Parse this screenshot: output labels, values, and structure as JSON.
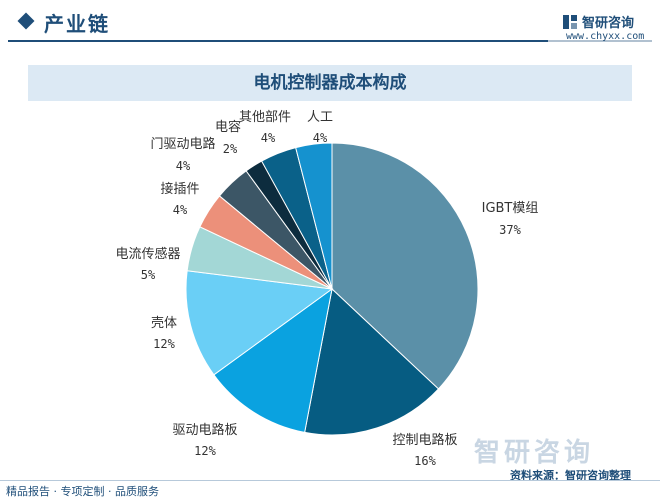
{
  "header": {
    "section_title": "产业链",
    "brand_name": "智研咨询",
    "brand_url": "www.chyxx.com"
  },
  "colors": {
    "accent": "#1f4e79",
    "title_bg": "#dce9f4"
  },
  "chart_data": {
    "type": "pie",
    "title": "电机控制器成本构成",
    "slices": [
      {
        "label": "IGBT模组",
        "value": 37,
        "value_label": "37%",
        "color": "#5b90a8"
      },
      {
        "label": "控制电路板",
        "value": 16,
        "value_label": "16%",
        "color": "#065c82"
      },
      {
        "label": "驱动电路板",
        "value": 12,
        "value_label": "12%",
        "color": "#0aa2e0"
      },
      {
        "label": "壳体",
        "value": 12,
        "value_label": "12%",
        "color": "#6acff6"
      },
      {
        "label": "电流传感器",
        "value": 5,
        "value_label": "5%",
        "color": "#a3d7d6"
      },
      {
        "label": "接插件",
        "value": 4,
        "value_label": "4%",
        "color": "#ec907a"
      },
      {
        "label": "门驱动电路",
        "value": 4,
        "value_label": "4%",
        "color": "#3c5666"
      },
      {
        "label": "电容",
        "value": 2,
        "value_label": "2%",
        "color": "#0d2c3e"
      },
      {
        "label": "其他部件",
        "value": 4,
        "value_label": "4%",
        "color": "#0a6189"
      },
      {
        "label": "人工",
        "value": 4,
        "value_label": "4%",
        "color": "#1592cf"
      }
    ]
  },
  "footer": {
    "services": "精品报告 · 专项定制 · 品质服务",
    "source": "资料来源：智研咨询整理",
    "watermark": "智研咨询"
  }
}
